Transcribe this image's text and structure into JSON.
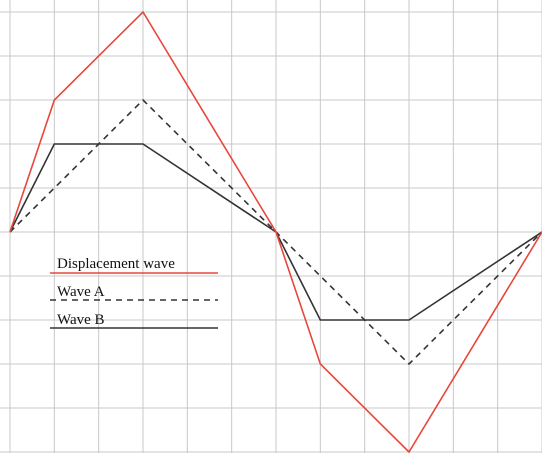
{
  "chart_data": {
    "type": "line",
    "grid": true,
    "grid_divisions": {
      "x": 12,
      "y": 10
    },
    "xlim": [
      0,
      12
    ],
    "ylim": [
      -5,
      5
    ],
    "series": [
      {
        "name": "Displacement wave",
        "color": "#e8463c",
        "style": "solid",
        "x": [
          0,
          1,
          3,
          6,
          7,
          9,
          12
        ],
        "y": [
          0,
          3,
          5,
          0,
          -3,
          -5,
          0
        ]
      },
      {
        "name": "Wave A",
        "color": "#333333",
        "style": "dashed",
        "x": [
          0,
          3,
          6,
          9,
          12
        ],
        "y": [
          0,
          3,
          0,
          -3,
          0
        ]
      },
      {
        "name": "Wave B",
        "color": "#333333",
        "style": "solid",
        "x": [
          0,
          1,
          3,
          6,
          7,
          9,
          12
        ],
        "y": [
          0,
          2,
          2,
          0,
          -2,
          -2,
          0
        ]
      }
    ],
    "legend": {
      "placement": "left-middle",
      "items": [
        "Displacement wave",
        "Wave A",
        "Wave B"
      ]
    }
  }
}
